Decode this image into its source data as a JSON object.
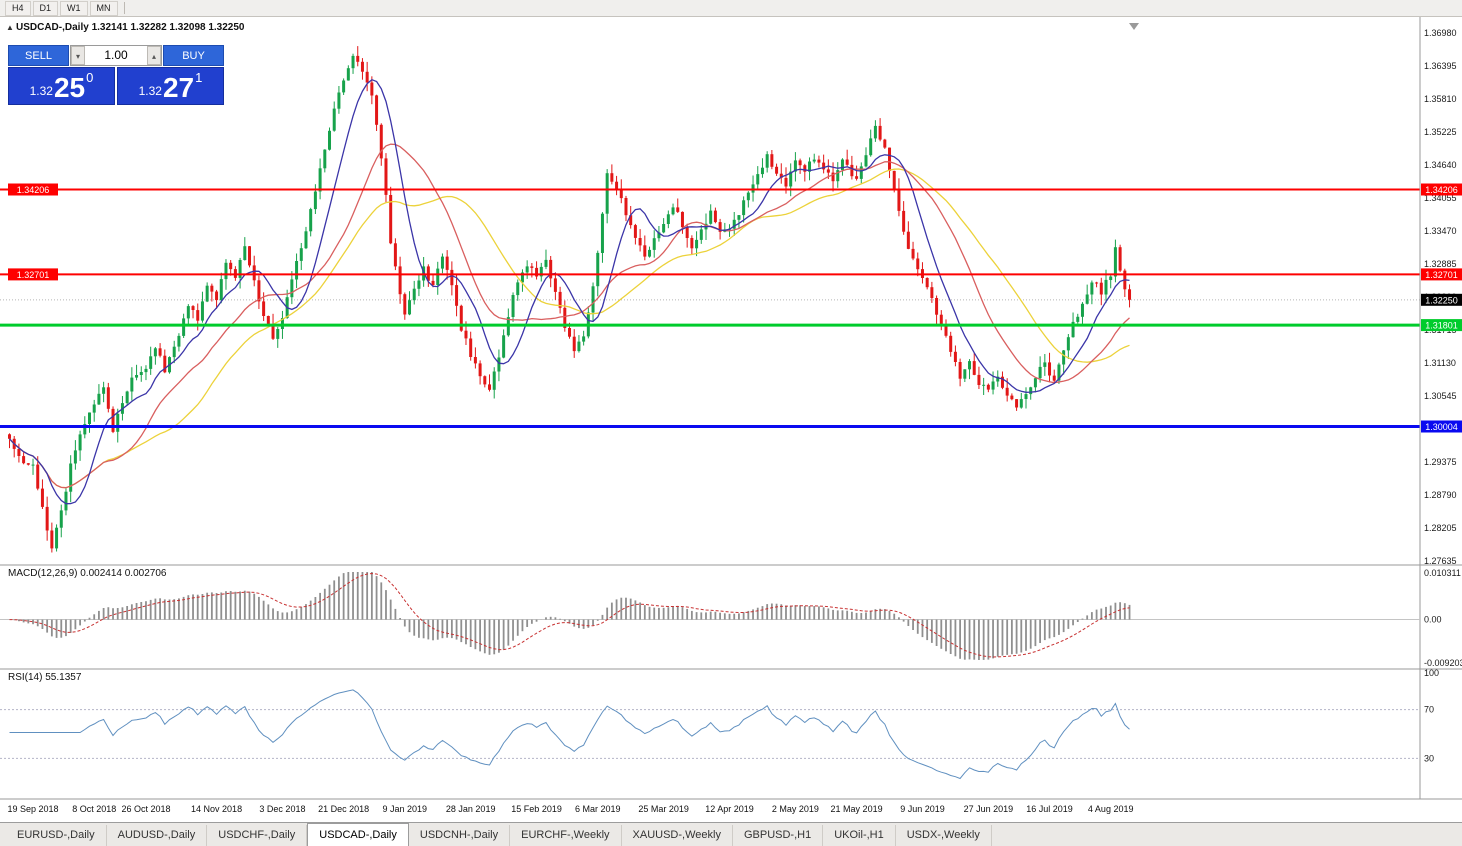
{
  "toolbar": {
    "timeframes": [
      "H4",
      "D1",
      "W1",
      "MN"
    ]
  },
  "chart_header": {
    "collapse_icon": "▲",
    "symbol": "USDCAD-,Daily",
    "open": "1.32141",
    "high": "1.32282",
    "low": "1.32098",
    "close": "1.32250"
  },
  "trade_panel": {
    "sell_label": "SELL",
    "buy_label": "BUY",
    "volume": "1.00",
    "icons": {
      "volume_down": "▾",
      "volume_up": "▴"
    },
    "sell_price": {
      "prefix": "1.32",
      "big": "25",
      "sup": "0"
    },
    "buy_price": {
      "prefix": "1.32",
      "big": "27",
      "sup": "1"
    }
  },
  "colors": {
    "candle_up": "#17a24b",
    "candle_down": "#e21717",
    "ma_fast_blue": "#3b35a8",
    "ma_mid_red": "#d95f5f",
    "ma_slow_yellow": "#ecd23a",
    "hline_red": "#fe0000",
    "hline_green": "#00cc2c",
    "hline_blue": "#0a0af0",
    "current_badge": "#000000",
    "current_dash": "#b5b5b5",
    "macd_hist": "#8f8f8f",
    "macd_signal": "#c83232",
    "rsi_line": "#6090c0",
    "level_dash": "#b4b4c8",
    "axis_text": "#1a1a1a",
    "separator": "#9a9a9a"
  },
  "tabs": {
    "items": [
      "EURUSD-,Daily",
      "AUDUSD-,Daily",
      "USDCHF-,Daily",
      "USDCAD-,Daily",
      "USDCNH-,Daily",
      "EURCHF-,Weekly",
      "XAUUSD-,Weekly",
      "GBPUSD-,H1",
      "UKOil-,H1",
      "USDX-,Weekly"
    ],
    "active_index": 3
  },
  "chart_data": {
    "type": "candlestick",
    "symbol": "USDCAD",
    "timeframe": "Daily",
    "last_ohlc": {
      "open": 1.32141,
      "high": 1.32282,
      "low": 1.32098,
      "close": 1.3225
    },
    "price_axis_top": 1.3698,
    "price_axis_bottom": 1.2762,
    "price_axis_labels": [
      "1.36980",
      "1.36395",
      "1.35810",
      "1.35225",
      "1.34640",
      "1.34055",
      "1.33470",
      "1.32885",
      "1.32300",
      "1.31715",
      "1.31130",
      "1.30545",
      "1.29960",
      "1.29375",
      "1.28790",
      "1.28205",
      "1.27635"
    ],
    "candle_count": 239,
    "price_path": [
      [
        0,
        1.2985
      ],
      [
        2,
        1.2945
      ],
      [
        5,
        1.293
      ],
      [
        7,
        1.2855
      ],
      [
        9,
        1.2788
      ],
      [
        11,
        1.285
      ],
      [
        13,
        1.293
      ],
      [
        15,
        1.2985
      ],
      [
        18,
        1.3045
      ],
      [
        20,
        1.307
      ],
      [
        22,
        1.2995
      ],
      [
        24,
        1.3045
      ],
      [
        26,
        1.3085
      ],
      [
        29,
        1.3105
      ],
      [
        31,
        1.314
      ],
      [
        33,
        1.31
      ],
      [
        36,
        1.316
      ],
      [
        38,
        1.3215
      ],
      [
        40,
        1.319
      ],
      [
        42,
        1.3245
      ],
      [
        44,
        1.323
      ],
      [
        46,
        1.329
      ],
      [
        48,
        1.3265
      ],
      [
        50,
        1.3315
      ],
      [
        52,
        1.3255
      ],
      [
        54,
        1.32
      ],
      [
        56,
        1.316
      ],
      [
        58,
        1.3195
      ],
      [
        60,
        1.326
      ],
      [
        62,
        1.332
      ],
      [
        64,
        1.3385
      ],
      [
        66,
        1.3455
      ],
      [
        68,
        1.3525
      ],
      [
        70,
        1.359
      ],
      [
        71,
        1.362
      ],
      [
        73,
        1.3658
      ],
      [
        75,
        1.3635
      ],
      [
        77,
        1.359
      ],
      [
        79,
        1.348
      ],
      [
        81,
        1.333
      ],
      [
        83,
        1.324
      ],
      [
        84,
        1.3195
      ],
      [
        86,
        1.325
      ],
      [
        88,
        1.328
      ],
      [
        90,
        1.325
      ],
      [
        92,
        1.33
      ],
      [
        94,
        1.325
      ],
      [
        96,
        1.317
      ],
      [
        98,
        1.313
      ],
      [
        100,
        1.309
      ],
      [
        102,
        1.3065
      ],
      [
        104,
        1.312
      ],
      [
        106,
        1.32
      ],
      [
        108,
        1.326
      ],
      [
        110,
        1.329
      ],
      [
        112,
        1.327
      ],
      [
        114,
        1.329
      ],
      [
        116,
        1.324
      ],
      [
        118,
        1.318
      ],
      [
        120,
        1.314
      ],
      [
        122,
        1.3165
      ],
      [
        124,
        1.325
      ],
      [
        125,
        1.331
      ],
      [
        127,
        1.3445
      ],
      [
        129,
        1.342
      ],
      [
        131,
        1.338
      ],
      [
        133,
        1.334
      ],
      [
        135,
        1.33
      ],
      [
        137,
        1.333
      ],
      [
        139,
        1.336
      ],
      [
        141,
        1.339
      ],
      [
        143,
        1.336
      ],
      [
        145,
        1.332
      ],
      [
        147,
        1.335
      ],
      [
        149,
        1.338
      ],
      [
        151,
        1.334
      ],
      [
        153,
        1.335
      ],
      [
        155,
        1.338
      ],
      [
        157,
        1.342
      ],
      [
        159,
        1.345
      ],
      [
        161,
        1.348
      ],
      [
        163,
        1.345
      ],
      [
        165,
        1.343
      ],
      [
        167,
        1.347
      ],
      [
        169,
        1.345
      ],
      [
        171,
        1.348
      ],
      [
        173,
        1.346
      ],
      [
        175,
        1.344
      ],
      [
        177,
        1.347
      ],
      [
        179,
        1.345
      ],
      [
        180,
        1.344
      ],
      [
        182,
        1.348
      ],
      [
        184,
        1.353
      ],
      [
        186,
        1.349
      ],
      [
        188,
        1.342
      ],
      [
        190,
        1.334
      ],
      [
        192,
        1.33
      ],
      [
        194,
        1.327
      ],
      [
        196,
        1.323
      ],
      [
        198,
        1.318
      ],
      [
        200,
        1.313
      ],
      [
        202,
        1.309
      ],
      [
        204,
        1.311
      ],
      [
        206,
        1.308
      ],
      [
        208,
        1.307
      ],
      [
        210,
        1.309
      ],
      [
        212,
        1.305
      ],
      [
        214,
        1.3038
      ],
      [
        216,
        1.306
      ],
      [
        218,
        1.309
      ],
      [
        220,
        1.311
      ],
      [
        222,
        1.308
      ],
      [
        224,
        1.313
      ],
      [
        226,
        1.318
      ],
      [
        228,
        1.322
      ],
      [
        230,
        1.326
      ],
      [
        232,
        1.324
      ],
      [
        234,
        1.327
      ],
      [
        235,
        1.332
      ],
      [
        236,
        1.328
      ],
      [
        237,
        1.3245
      ],
      [
        238,
        1.3225
      ]
    ],
    "date_labels": [
      {
        "text": "19 Sep 2018",
        "idx": 5
      },
      {
        "text": "8 Oct 2018",
        "idx": 18
      },
      {
        "text": "26 Oct 2018",
        "idx": 29
      },
      {
        "text": "14 Nov 2018",
        "idx": 44
      },
      {
        "text": "3 Dec 2018",
        "idx": 58
      },
      {
        "text": "21 Dec 2018",
        "idx": 71
      },
      {
        "text": "9 Jan 2019",
        "idx": 84
      },
      {
        "text": "28 Jan 2019",
        "idx": 98
      },
      {
        "text": "15 Feb 2019",
        "idx": 112
      },
      {
        "text": "6 Mar 2019",
        "idx": 125
      },
      {
        "text": "25 Mar 2019",
        "idx": 139
      },
      {
        "text": "12 Apr 2019",
        "idx": 153
      },
      {
        "text": "2 May 2019",
        "idx": 167
      },
      {
        "text": "21 May 2019",
        "idx": 180
      },
      {
        "text": "9 Jun 2019",
        "idx": 194
      },
      {
        "text": "27 Jun 2019",
        "idx": 208
      },
      {
        "text": "16 Jul 2019",
        "idx": 221
      },
      {
        "text": "4 Aug 2019",
        "idx": 234
      }
    ],
    "hlines": [
      {
        "value": 1.34206,
        "label": "1.34206",
        "color": "#fe0000",
        "width": 2,
        "left_label": true,
        "right_label": true
      },
      {
        "value": 1.32701,
        "label": "1.32701",
        "color": "#fe0000",
        "width": 2,
        "left_label": true,
        "right_label": true
      },
      {
        "value": 1.31801,
        "label": "1.31801",
        "color": "#00cc2c",
        "width": 3,
        "left_label": false,
        "right_label": true
      },
      {
        "value": 1.30004,
        "label": "1.30004",
        "color": "#0a0af0",
        "width": 3,
        "left_label": false,
        "right_label": true
      }
    ],
    "current_price": {
      "value": 1.3225,
      "label": "1.32250"
    },
    "macd": {
      "label": "MACD(12,26,9) 0.002414 0.002706",
      "params": [
        12,
        26,
        9
      ],
      "value": 0.002414,
      "signal": 0.002706,
      "max": 0.010311,
      "min": -0.009203,
      "axis_labels": [
        "0.010311",
        "0.00",
        "-0.009203"
      ]
    },
    "rsi": {
      "label": "RSI(14) 55.1357",
      "period": 14,
      "value": 55.1357,
      "levels": [
        {
          "value": 100,
          "label": "100"
        },
        {
          "value": 70,
          "label": "70"
        },
        {
          "value": 30,
          "label": "30"
        }
      ]
    },
    "render_hints": {
      "ma_periods": {
        "yellow": 34,
        "red": 21,
        "blue": 9
      },
      "grid": "off",
      "legend_position": "top-left"
    }
  }
}
